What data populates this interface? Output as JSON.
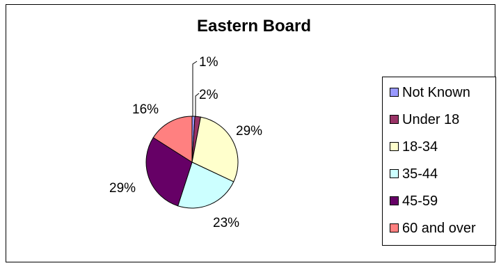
{
  "chart_data": {
    "type": "pie",
    "title": "Eastern Board",
    "categories": [
      "Not Known",
      "Under 18",
      "18-34",
      "35-44",
      "45-59",
      "60 and over"
    ],
    "values": [
      1,
      2,
      29,
      23,
      29,
      16
    ],
    "labels": [
      "1%",
      "2%",
      "29%",
      "23%",
      "29%",
      "16%"
    ],
    "colors": [
      "#9999ff",
      "#993366",
      "#ffffcc",
      "#ccffff",
      "#660066",
      "#ff8080"
    ],
    "legend_position": "right"
  }
}
